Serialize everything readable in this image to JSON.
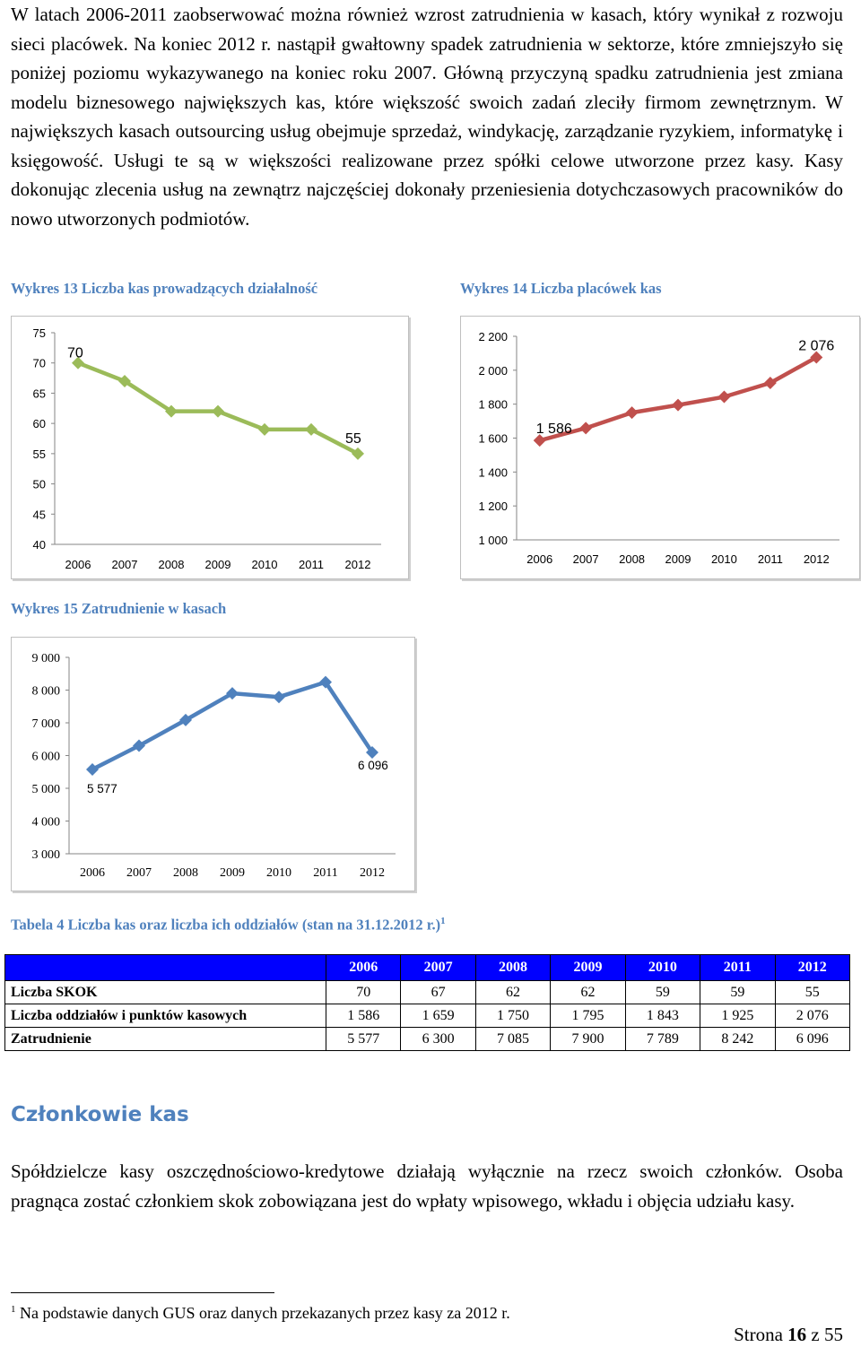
{
  "paragraphs": {
    "intro": "W latach 2006-2011 zaobserwować można również wzrost zatrudnienia w kasach, który wynikał z rozwoju sieci placówek. Na koniec 2012 r. nastąpił gwałtowny spadek zatrudnienia w sektorze, które zmniejszyło się poniżej poziomu wykazywanego na koniec roku 2007. Główną przyczyną spadku zatrudnienia jest zmiana modelu biznesowego największych kas, które większość swoich zadań zleciły firmom zewnętrznym. W największych kasach outsourcing usług obejmuje sprzedaż, windykację, zarządzanie ryzykiem, informatykę i księgowość. Usługi te są w większości realizowane przez spółki celowe utworzone przez kasy. Kasy dokonując zlecenia usług na zewnątrz najczęściej dokonały przeniesienia dotychczasowych pracowników do nowo utworzonych podmiotów.",
    "members": "Spółdzielcze kasy oszczędnościowo-kredytowe działają wyłącznie na rzecz swoich członków. Osoba pragnąca zostać członkiem skok zobowiązana jest do wpłaty wpisowego, wkładu i objęcia udziału kasy."
  },
  "captions": {
    "chart13": "Wykres 13 Liczba kas prowadzących działalność",
    "chart14": "Wykres 14 Liczba placówek kas",
    "chart15": "Wykres 15 Zatrudnienie w kasach",
    "table4": "Tabela 4 Liczba kas oraz liczba ich oddziałów (stan na 31.12.2012 r.)",
    "table4_note_ref": "1"
  },
  "chart_data": [
    {
      "type": "line",
      "title": "Wykres 13 Liczba kas prowadzących działalność",
      "categories": [
        "2006",
        "2007",
        "2008",
        "2009",
        "2010",
        "2011",
        "2012"
      ],
      "values": [
        70,
        67,
        62,
        62,
        59,
        59,
        55
      ],
      "ylim": [
        40,
        75
      ],
      "yticks": [
        "75",
        "70",
        "65",
        "60",
        "55",
        "50",
        "45",
        "40"
      ],
      "data_labels": {
        "first": "70",
        "last": "55"
      },
      "color": "#9bbb59",
      "marker": "diamond",
      "grid": false
    },
    {
      "type": "line",
      "title": "Wykres 14 Liczba placówek kas",
      "categories": [
        "2006",
        "2007",
        "2008",
        "2009",
        "2010",
        "2011",
        "2012"
      ],
      "values": [
        1586,
        1659,
        1750,
        1795,
        1843,
        1925,
        2076
      ],
      "ylim": [
        1000,
        2200
      ],
      "yticks": [
        "2 200",
        "2 000",
        "1 800",
        "1 600",
        "1 400",
        "1 200",
        "1 000"
      ],
      "data_labels": {
        "first": "1 586",
        "last": "2 076"
      },
      "color": "#c0504d",
      "marker": "diamond",
      "grid": false
    },
    {
      "type": "line",
      "title": "Wykres 15 Zatrudnienie w kasach",
      "categories": [
        "2006",
        "2007",
        "2008",
        "2009",
        "2010",
        "2011",
        "2012"
      ],
      "values": [
        5577,
        6300,
        7085,
        7900,
        7789,
        8242,
        6096
      ],
      "ylim": [
        3000,
        9000
      ],
      "yticks": [
        "9 000",
        "8 000",
        "7 000",
        "6 000",
        "5 000",
        "4 000",
        "3 000"
      ],
      "data_labels": {
        "first": "5 577",
        "last": "6 096"
      },
      "color": "#4f81bd",
      "marker": "diamond",
      "grid": false
    }
  ],
  "table": {
    "headers": [
      "",
      "2006",
      "2007",
      "2008",
      "2009",
      "2010",
      "2011",
      "2012"
    ],
    "rows": [
      {
        "label": "Liczba SKOK",
        "cells": [
          "70",
          "67",
          "62",
          "62",
          "59",
          "59",
          "55"
        ]
      },
      {
        "label": "Liczba oddziałów i punktów kasowych",
        "cells": [
          "1 586",
          "1 659",
          "1 750",
          "1 795",
          "1 843",
          "1 925",
          "2 076"
        ]
      },
      {
        "label": "Zatrudnienie",
        "cells": [
          "5 577",
          "6 300",
          "7 085",
          "7 900",
          "7 789",
          "8 242",
          "6 096"
        ]
      }
    ]
  },
  "heading": "Członkowie kas",
  "footnote": {
    "ref": "1",
    "text": "Na podstawie danych GUS oraz danych przekazanych przez kasy za 2012 r."
  },
  "page": {
    "prefix": "Strona ",
    "current": "16",
    "separator": " z ",
    "total": "55"
  }
}
